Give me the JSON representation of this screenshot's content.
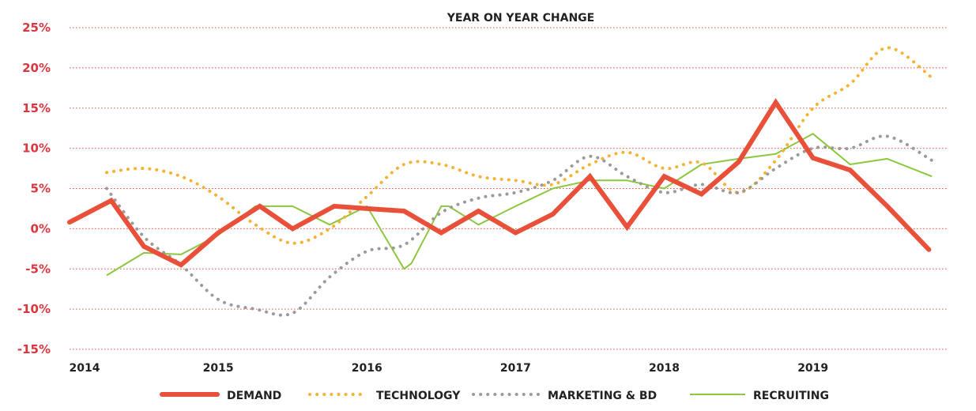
{
  "chart_data": {
    "type": "line",
    "title": "YEAR ON YEAR CHANGE",
    "xlabel": "",
    "ylabel": "",
    "xlim": [
      2014,
      2019.9
    ],
    "ylim": [
      -15,
      25
    ],
    "y_ticks": [
      25,
      20,
      15,
      10,
      5,
      0,
      -5,
      -10,
      -15
    ],
    "y_tick_labels": [
      "25%",
      "20%",
      "15%",
      "10%",
      "5%",
      "0%",
      "-5%",
      "-10%",
      "-15%"
    ],
    "x_ticks": [
      2014,
      2015,
      2016,
      2017,
      2018,
      2019
    ],
    "x_tick_labels": [
      "2014",
      "2015",
      "2016",
      "2017",
      "2018",
      "2019"
    ],
    "grid": "horizontal-dotted",
    "legend_position": "bottom",
    "series": [
      {
        "name": "DEMAND",
        "color": "#e8503a",
        "style": "solid-thick",
        "x": [
          2014.0,
          2014.28,
          2014.5,
          2014.75,
          2015.0,
          2015.28,
          2015.5,
          2015.78,
          2016.0,
          2016.25,
          2016.5,
          2016.75,
          2017.0,
          2017.25,
          2017.5,
          2017.75,
          2018.0,
          2018.25,
          2018.5,
          2018.75,
          2019.0,
          2019.25,
          2019.5,
          2019.78
        ],
        "y": [
          0.8,
          3.5,
          -2.2,
          -4.5,
          -0.5,
          2.8,
          0.0,
          2.8,
          2.5,
          2.2,
          -0.5,
          2.2,
          -0.5,
          1.8,
          6.5,
          0.2,
          6.5,
          4.3,
          8.3,
          15.7,
          8.8,
          7.3,
          2.8,
          -2.6
        ]
      },
      {
        "name": "TECHNOLOGY",
        "color": "#f5b335",
        "style": "dotted",
        "x": [
          2014.25,
          2014.5,
          2014.75,
          2015.0,
          2015.25,
          2015.5,
          2015.75,
          2016.0,
          2016.25,
          2016.5,
          2016.75,
          2017.0,
          2017.25,
          2017.5,
          2017.75,
          2018.0,
          2018.25,
          2018.5,
          2018.75,
          2019.0,
          2019.25,
          2019.5,
          2019.8
        ],
        "y": [
          7.0,
          7.5,
          6.5,
          4.0,
          0.5,
          -1.8,
          0.0,
          4.0,
          8.0,
          8.0,
          6.5,
          6.0,
          5.5,
          8.0,
          9.5,
          7.5,
          8.2,
          4.5,
          8.5,
          15.0,
          18.0,
          22.5,
          18.8
        ]
      },
      {
        "name": "MARKETING & BD",
        "color": "#9b9b9b",
        "style": "dotted",
        "x": [
          2014.25,
          2014.5,
          2014.75,
          2015.0,
          2015.25,
          2015.5,
          2015.75,
          2016.0,
          2016.25,
          2016.5,
          2016.75,
          2017.0,
          2017.25,
          2017.5,
          2017.75,
          2018.0,
          2018.25,
          2018.5,
          2018.75,
          2019.0,
          2019.25,
          2019.5,
          2019.8
        ],
        "y": [
          5.0,
          -1.0,
          -4.5,
          -8.8,
          -10.0,
          -10.5,
          -6.0,
          -2.8,
          -2.0,
          2.0,
          3.8,
          4.5,
          6.0,
          9.0,
          6.5,
          4.5,
          5.5,
          4.5,
          7.5,
          10.0,
          10.0,
          11.5,
          8.5
        ]
      },
      {
        "name": "RECRUITING",
        "color": "#8dc63f",
        "style": "solid-thin",
        "x": [
          2014.25,
          2014.5,
          2014.75,
          2015.0,
          2015.25,
          2015.5,
          2015.75,
          2016.0,
          2016.25,
          2016.3,
          2016.5,
          2016.55,
          2016.75,
          2017.0,
          2017.25,
          2017.5,
          2017.75,
          2018.0,
          2018.25,
          2018.5,
          2018.75,
          2019.0,
          2019.25,
          2019.5,
          2019.8
        ],
        "y": [
          -5.8,
          -3.0,
          -3.2,
          -0.8,
          2.8,
          2.8,
          0.5,
          2.8,
          -5.0,
          -4.3,
          2.8,
          2.8,
          0.5,
          2.8,
          5.0,
          6.0,
          6.0,
          5.0,
          8.0,
          8.7,
          9.3,
          11.8,
          8.0,
          8.7,
          6.5
        ]
      }
    ]
  }
}
